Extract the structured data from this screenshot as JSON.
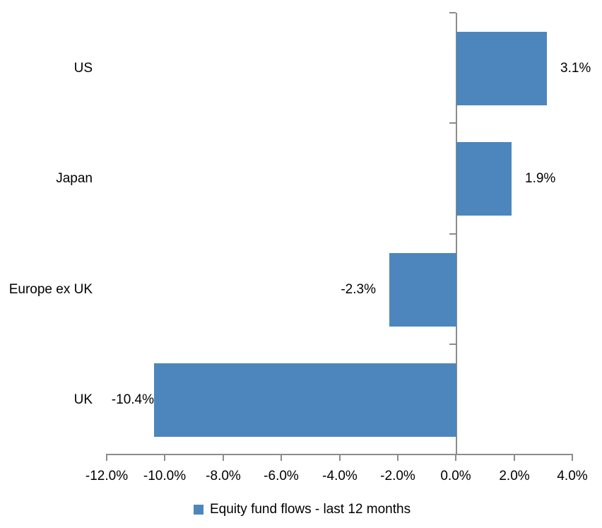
{
  "chart_data": {
    "type": "bar",
    "orientation": "horizontal",
    "title": "",
    "categories": [
      "US",
      "Japan",
      "Europe ex UK",
      "UK"
    ],
    "values": [
      3.1,
      1.9,
      -2.3,
      -10.4
    ],
    "data_labels": [
      "3.1%",
      "1.9%",
      "-2.3%",
      "-10.4%"
    ],
    "series_name": "Equity fund flows - last 12 months",
    "x_tick_labels": [
      "-12.0%",
      "-10.0%",
      "-8.0%",
      "-6.0%",
      "-4.0%",
      "-2.0%",
      "0.0%",
      "2.0%",
      "4.0%"
    ],
    "xlim": [
      -12,
      4
    ],
    "x_tick_step": 2,
    "grid": false,
    "legend_position": "bottom",
    "colors": {
      "bar": "#4D86BC",
      "axis": "#8C8C8C",
      "text": "#000000",
      "background": "#FFFFFF"
    }
  }
}
